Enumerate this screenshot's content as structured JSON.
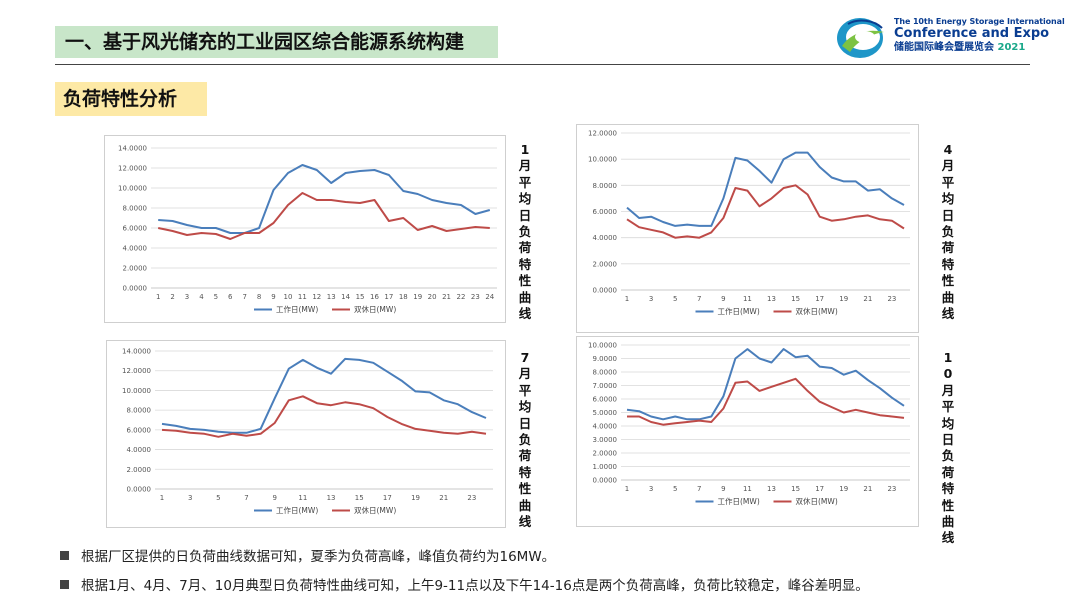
{
  "header": {
    "title": "一、基于风光储充的工业园区综合能源系统构建"
  },
  "logo": {
    "line1": "The 10th Energy Storage International",
    "line2": "Conference and Expo",
    "line3": "储能国际峰会暨展览会",
    "year": "2021"
  },
  "section": {
    "title": "负荷特性分析"
  },
  "bullets": [
    "根据厂区提供的日负荷曲线数据可知，夏季为负荷高峰，峰值负荷约为16MW。",
    "根据1月、4月、7月、10月典型日负荷特性曲线可知，上午9-11点以及下午14-16点是两个负荷高峰，负荷比较稳定，峰谷差明显。"
  ],
  "colors": {
    "workday": "#4a7ebb",
    "weekend": "#be4b48",
    "title_bg": "#c8e6c9",
    "section_bg": "#fde9a6"
  },
  "chart_data": [
    {
      "type": "line",
      "side_label": "1月平均日负荷特性曲线",
      "categories": [
        "1",
        "2",
        "3",
        "4",
        "5",
        "6",
        "7",
        "8",
        "9",
        "10",
        "11",
        "12",
        "13",
        "14",
        "15",
        "16",
        "17",
        "18",
        "19",
        "20",
        "21",
        "22",
        "23",
        "24"
      ],
      "tick_labels": [
        "1",
        "2",
        "3",
        "4",
        "5",
        "6",
        "7",
        "8",
        "9",
        "10",
        "11",
        "12",
        "13",
        "14",
        "15",
        "16",
        "17",
        "18",
        "19",
        "20",
        "21",
        "22",
        "23",
        "24"
      ],
      "ylim": [
        0,
        14
      ],
      "yticks": [
        "0.0000",
        "2.0000",
        "4.0000",
        "6.0000",
        "8.0000",
        "10.0000",
        "12.0000",
        "14.0000"
      ],
      "series": [
        {
          "name": "工作日(MW)",
          "values": [
            6.8,
            6.7,
            6.3,
            6.0,
            6.0,
            5.5,
            5.5,
            6.0,
            9.8,
            11.5,
            12.3,
            11.8,
            10.5,
            11.5,
            11.7,
            11.8,
            11.3,
            9.7,
            9.4,
            8.8,
            8.5,
            8.3,
            7.4,
            7.8
          ]
        },
        {
          "name": "双休日(MW)",
          "values": [
            6.0,
            5.7,
            5.3,
            5.5,
            5.4,
            4.9,
            5.5,
            5.5,
            6.5,
            8.3,
            9.5,
            8.8,
            8.8,
            8.6,
            8.5,
            8.8,
            6.7,
            7.0,
            5.8,
            6.2,
            5.7,
            5.9,
            6.1,
            6.0
          ]
        }
      ],
      "legend": "bottom"
    },
    {
      "type": "line",
      "side_label": "4月平均日负荷特性曲线",
      "categories": [
        "1",
        "2",
        "3",
        "4",
        "5",
        "6",
        "7",
        "8",
        "9",
        "10",
        "11",
        "12",
        "13",
        "14",
        "15",
        "16",
        "17",
        "18",
        "19",
        "20",
        "21",
        "22",
        "23",
        "24"
      ],
      "tick_labels": [
        "1",
        "3",
        "5",
        "7",
        "9",
        "11",
        "13",
        "15",
        "17",
        "19",
        "21",
        "23"
      ],
      "ylim": [
        0,
        12
      ],
      "yticks": [
        "0.0000",
        "2.0000",
        "4.0000",
        "6.0000",
        "8.0000",
        "10.0000",
        "12.0000"
      ],
      "series": [
        {
          "name": "工作日(MW)",
          "values": [
            6.3,
            5.5,
            5.6,
            5.2,
            4.9,
            5.0,
            4.9,
            4.9,
            7.0,
            10.1,
            9.9,
            9.1,
            8.2,
            10.0,
            10.5,
            10.5,
            9.4,
            8.6,
            8.3,
            8.3,
            7.6,
            7.7,
            7.0,
            6.5
          ]
        },
        {
          "name": "双休日(MW)",
          "values": [
            5.4,
            4.8,
            4.6,
            4.4,
            4.0,
            4.1,
            4.0,
            4.4,
            5.5,
            7.8,
            7.6,
            6.4,
            7.0,
            7.8,
            8.0,
            7.3,
            5.6,
            5.3,
            5.4,
            5.6,
            5.7,
            5.4,
            5.3,
            4.7
          ]
        }
      ],
      "legend": "bottom"
    },
    {
      "type": "line",
      "side_label": "7月平均日负荷特性曲线",
      "categories": [
        "1",
        "2",
        "3",
        "4",
        "5",
        "6",
        "7",
        "8",
        "9",
        "10",
        "11",
        "12",
        "13",
        "14",
        "15",
        "16",
        "17",
        "18",
        "19",
        "20",
        "21",
        "22",
        "23",
        "24"
      ],
      "tick_labels": [
        "1",
        "3",
        "5",
        "7",
        "9",
        "11",
        "13",
        "15",
        "17",
        "19",
        "21",
        "23"
      ],
      "ylim": [
        0,
        14
      ],
      "yticks": [
        "0.0000",
        "2.0000",
        "4.0000",
        "6.0000",
        "8.0000",
        "10.0000",
        "12.0000",
        "14.0000"
      ],
      "series": [
        {
          "name": "工作日(MW)",
          "values": [
            6.6,
            6.4,
            6.1,
            6.0,
            5.8,
            5.7,
            5.7,
            6.1,
            9.2,
            12.2,
            13.1,
            12.3,
            11.7,
            13.2,
            13.1,
            12.8,
            11.9,
            11.0,
            9.9,
            9.8,
            9.0,
            8.6,
            7.8,
            7.2
          ]
        },
        {
          "name": "双休日(MW)",
          "values": [
            6.0,
            5.9,
            5.7,
            5.6,
            5.3,
            5.6,
            5.4,
            5.6,
            6.7,
            9.0,
            9.4,
            8.7,
            8.5,
            8.8,
            8.6,
            8.2,
            7.3,
            6.6,
            6.1,
            5.9,
            5.7,
            5.6,
            5.8,
            5.6
          ]
        }
      ],
      "legend": "bottom"
    },
    {
      "type": "line",
      "side_label": "10月平均日负荷特性曲线",
      "categories": [
        "1",
        "2",
        "3",
        "4",
        "5",
        "6",
        "7",
        "8",
        "9",
        "10",
        "11",
        "12",
        "13",
        "14",
        "15",
        "16",
        "17",
        "18",
        "19",
        "20",
        "21",
        "22",
        "23",
        "24"
      ],
      "tick_labels": [
        "1",
        "3",
        "5",
        "7",
        "9",
        "11",
        "13",
        "15",
        "17",
        "19",
        "21",
        "23"
      ],
      "ylim": [
        0,
        10
      ],
      "yticks": [
        "0.0000",
        "1.0000",
        "2.0000",
        "3.0000",
        "4.0000",
        "5.0000",
        "6.0000",
        "7.0000",
        "8.0000",
        "9.0000",
        "10.0000"
      ],
      "series": [
        {
          "name": "工作日(MW)",
          "values": [
            5.2,
            5.1,
            4.7,
            4.5,
            4.7,
            4.5,
            4.5,
            4.7,
            6.2,
            9.0,
            9.7,
            9.0,
            8.7,
            9.7,
            9.1,
            9.2,
            8.4,
            8.3,
            7.8,
            8.1,
            7.4,
            6.8,
            6.1,
            5.5
          ]
        },
        {
          "name": "双休日(MW)",
          "values": [
            4.7,
            4.7,
            4.3,
            4.1,
            4.2,
            4.3,
            4.4,
            4.3,
            5.3,
            7.2,
            7.3,
            6.6,
            6.9,
            7.2,
            7.5,
            6.6,
            5.8,
            5.4,
            5.0,
            5.2,
            5.0,
            4.8,
            4.7,
            4.6
          ]
        }
      ],
      "legend": "bottom"
    }
  ]
}
